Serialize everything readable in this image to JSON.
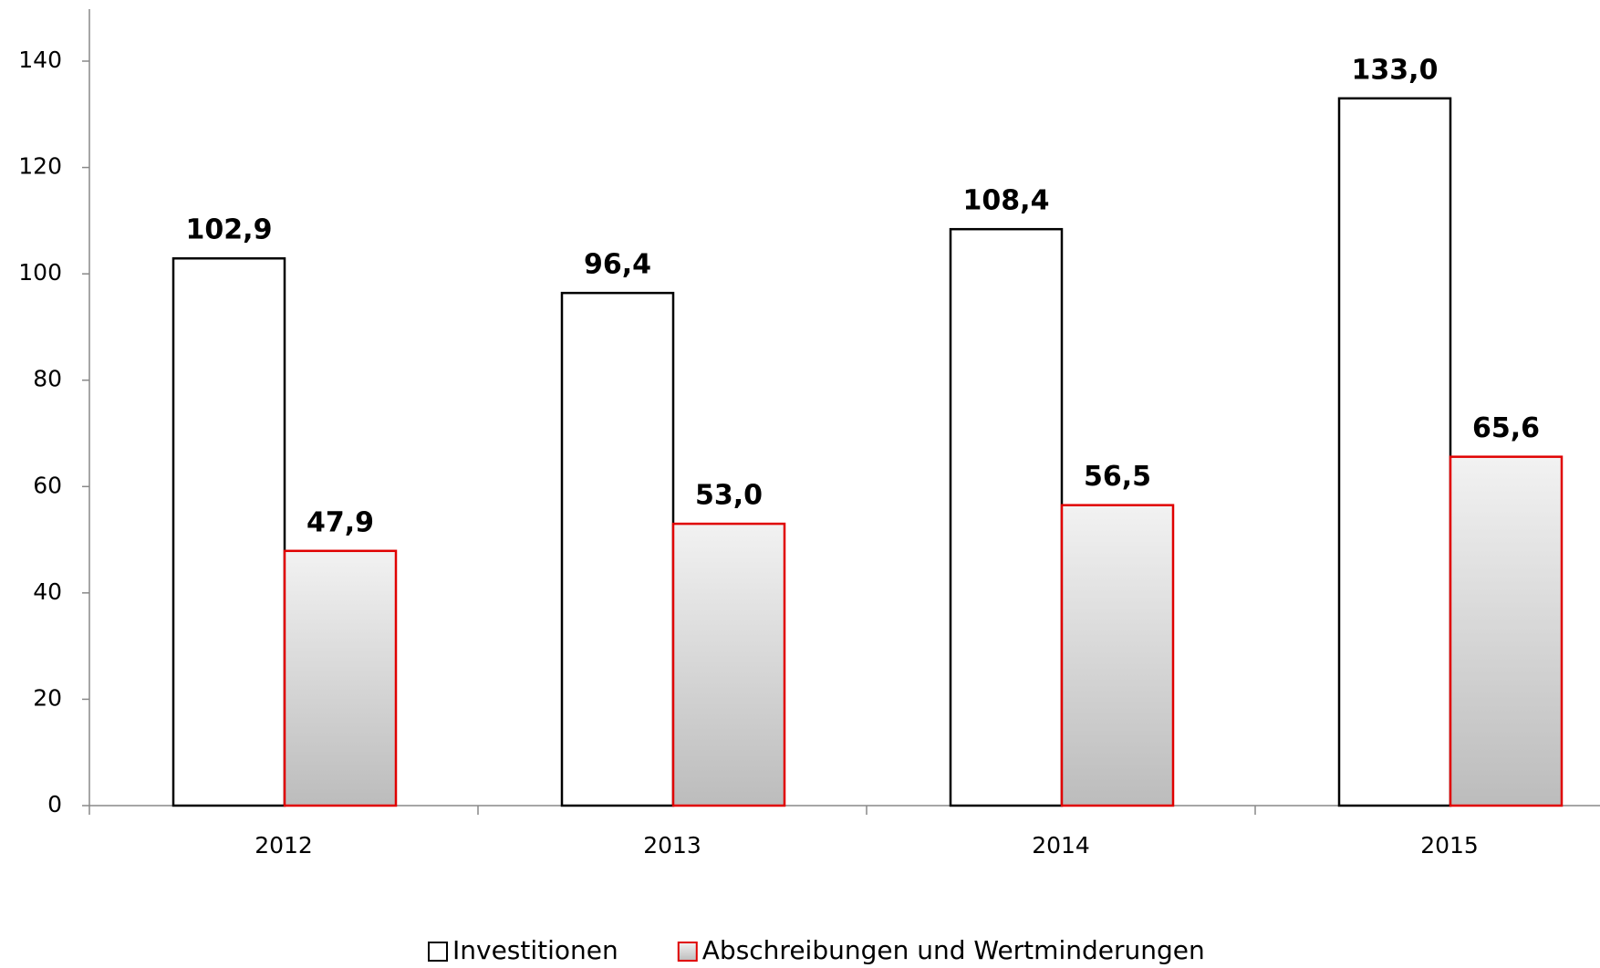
{
  "chart_data": {
    "type": "bar",
    "categories": [
      "2012",
      "2013",
      "2014",
      "2015"
    ],
    "series": [
      {
        "name": "Investitionen",
        "color": "#000000",
        "values": [
          102.9,
          96.4,
          108.4,
          133.0
        ],
        "value_labels": [
          "102,9",
          "96,4",
          "108,4",
          "133,0"
        ]
      },
      {
        "name": "Abschreibungen und Wertminderungen",
        "color": "#e00000",
        "values": [
          47.9,
          53.0,
          56.5,
          65.6
        ],
        "value_labels": [
          "47,9",
          "53,0",
          "56,5",
          "65,6"
        ]
      }
    ],
    "ylim": [
      0,
      140
    ],
    "yticks": [
      0,
      20,
      40,
      60,
      80,
      100,
      120,
      140
    ],
    "legend": "bottom"
  }
}
